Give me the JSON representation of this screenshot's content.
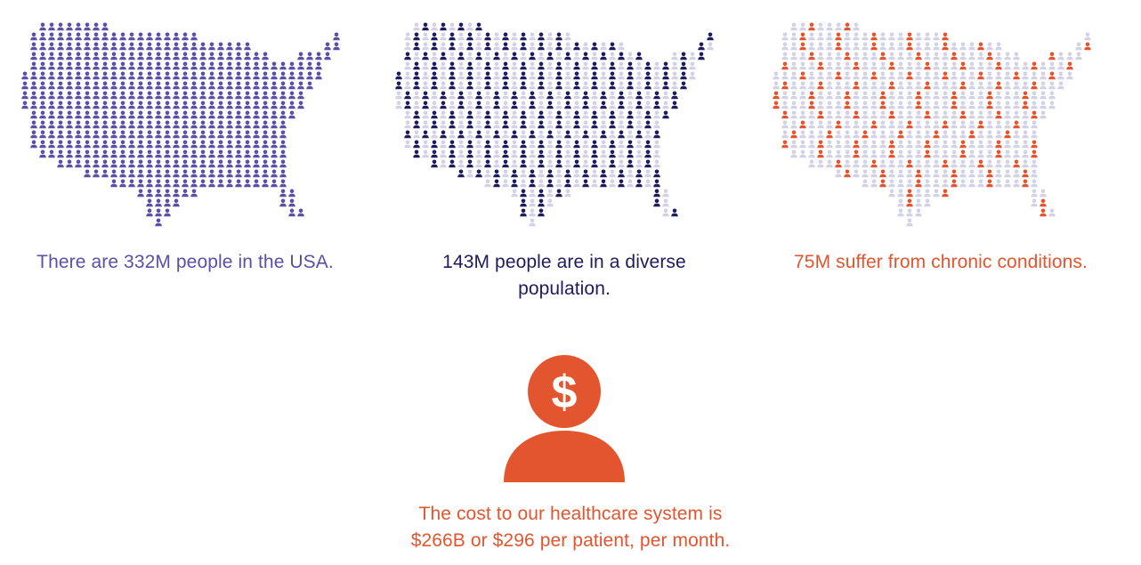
{
  "colors": {
    "population": "#5b4fa8",
    "diverse": "#1e1b5e",
    "chronic": "#e2552f",
    "muted_person": "#d3d1e6"
  },
  "panels": [
    {
      "caption": "There are 332M people in the USA.",
      "highlight_fraction": 1.0,
      "highlight_color": "#5b4fa8"
    },
    {
      "caption": "143M people are in a diverse population.",
      "highlight_fraction": 0.43,
      "highlight_color": "#1e1b5e"
    },
    {
      "caption": "75M suffer from chronic conditions.",
      "highlight_fraction": 0.23,
      "highlight_color": "#e2552f"
    }
  ],
  "cost": {
    "icon": "dollar-person-icon",
    "symbol": "$",
    "caption_line1": "The cost to our healthcare system is",
    "caption_line2": "$266B or $296 per patient, per month."
  }
}
